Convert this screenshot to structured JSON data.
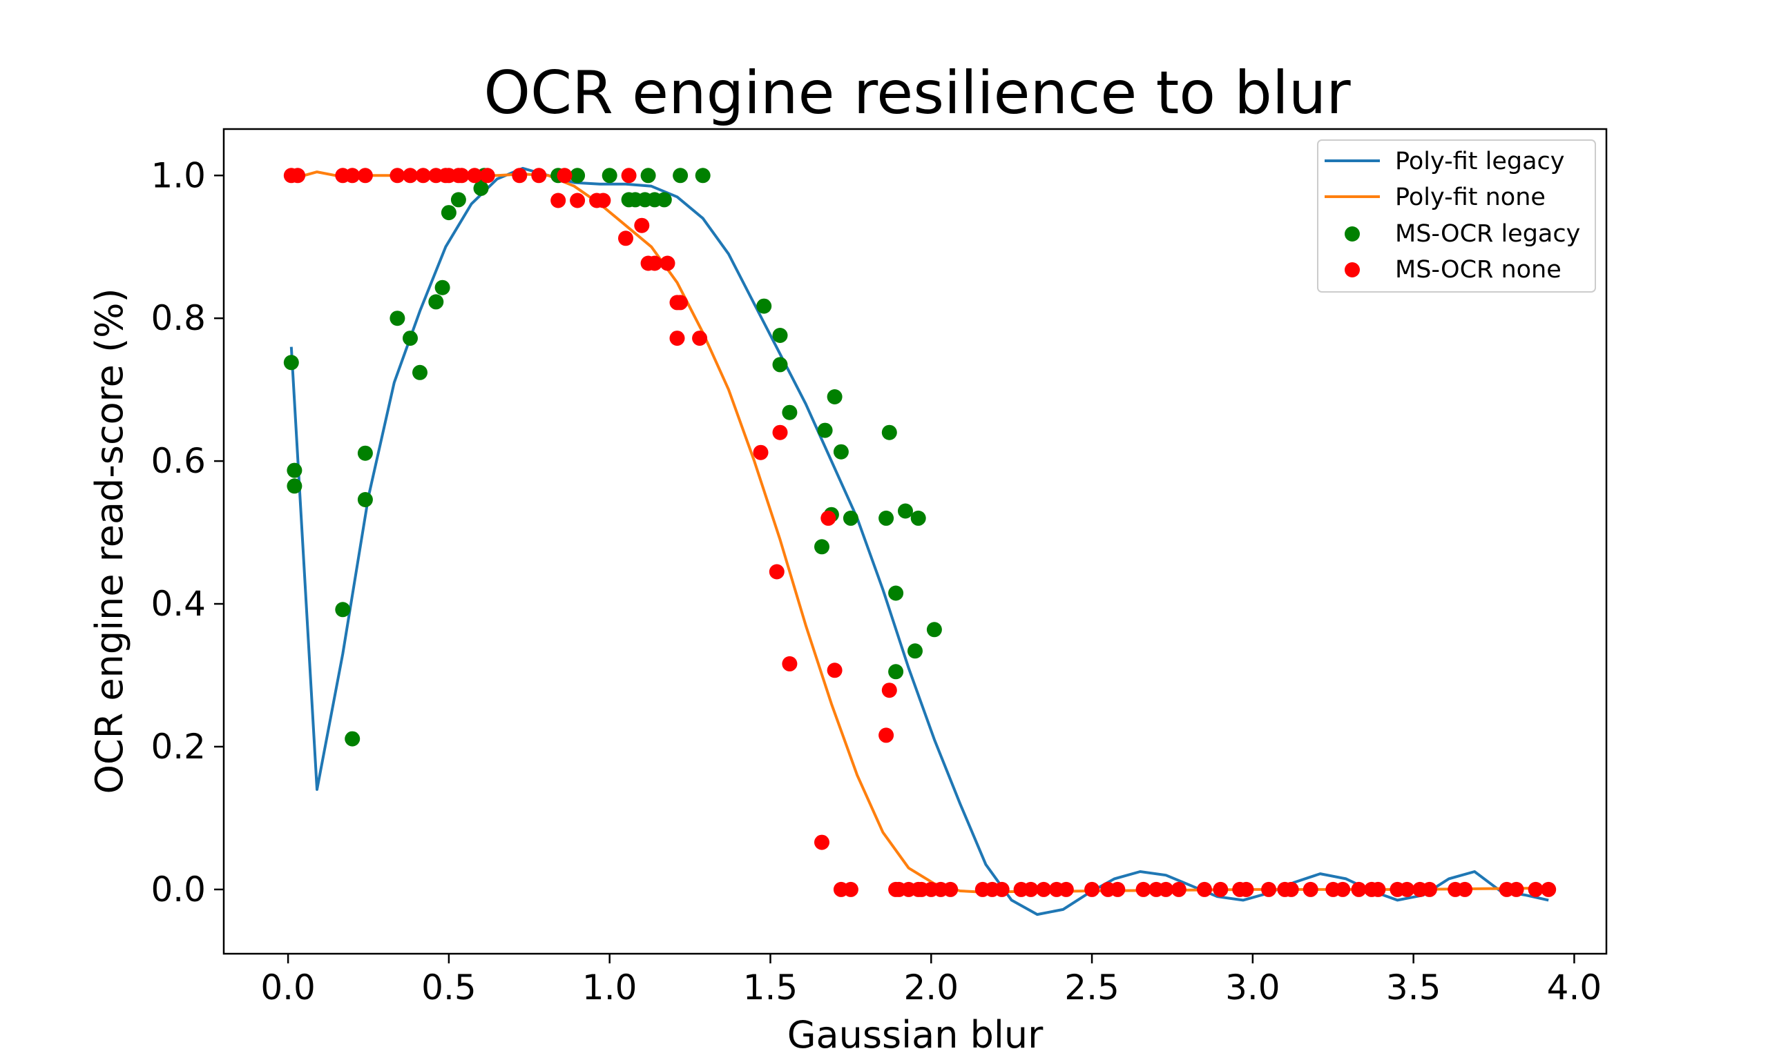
{
  "chart_data": {
    "type": "scatter",
    "title": "OCR engine resilience to blur",
    "xlabel": "Gaussian blur",
    "ylabel": "OCR engine read-score (%)",
    "xlim": [
      -0.2,
      4.1
    ],
    "ylim": [
      -0.09,
      1.065
    ],
    "xticks": [
      0.0,
      0.5,
      1.0,
      1.5,
      2.0,
      2.5,
      3.0,
      3.5,
      4.0
    ],
    "xtick_labels": [
      "0.0",
      "0.5",
      "1.0",
      "1.5",
      "2.0",
      "2.5",
      "3.0",
      "3.5",
      "4.0"
    ],
    "yticks": [
      0.0,
      0.2,
      0.4,
      0.6,
      0.8,
      1.0
    ],
    "ytick_labels": [
      "0.0",
      "0.2",
      "0.4",
      "0.6",
      "0.8",
      "1.0"
    ],
    "grid": false,
    "legend_position": "top-right",
    "colors": {
      "poly_legacy": "#1f77b4",
      "poly_none": "#ff7f0e",
      "ms_legacy": "#008000",
      "ms_none": "#ff0000"
    },
    "series": [
      {
        "name": "Poly-fit legacy",
        "kind": "line",
        "color": "#1f77b4",
        "x": [
          0.01,
          0.09,
          0.17,
          0.25,
          0.33,
          0.41,
          0.49,
          0.57,
          0.65,
          0.73,
          0.81,
          0.89,
          0.97,
          1.05,
          1.13,
          1.21,
          1.29,
          1.37,
          1.45,
          1.53,
          1.61,
          1.69,
          1.77,
          1.85,
          1.93,
          2.01,
          2.09,
          2.17,
          2.25,
          2.33,
          2.41,
          2.49,
          2.57,
          2.65,
          2.73,
          2.81,
          2.89,
          2.97,
          3.05,
          3.13,
          3.21,
          3.29,
          3.37,
          3.45,
          3.53,
          3.61,
          3.69,
          3.77,
          3.85,
          3.92
        ],
        "y": [
          0.76,
          0.14,
          0.33,
          0.55,
          0.71,
          0.81,
          0.9,
          0.96,
          0.995,
          1.01,
          1.0,
          0.99,
          0.988,
          0.988,
          0.985,
          0.97,
          0.94,
          0.89,
          0.82,
          0.75,
          0.68,
          0.6,
          0.52,
          0.42,
          0.31,
          0.21,
          0.12,
          0.035,
          -0.015,
          -0.035,
          -0.028,
          -0.005,
          0.015,
          0.025,
          0.02,
          0.005,
          -0.01,
          -0.015,
          -0.005,
          0.01,
          0.022,
          0.015,
          -0.002,
          -0.015,
          -0.008,
          0.015,
          0.025,
          -0.002,
          -0.008,
          -0.015
        ]
      },
      {
        "name": "Poly-fit none",
        "kind": "line",
        "color": "#ff7f0e",
        "x": [
          0.01,
          0.09,
          0.17,
          0.25,
          0.33,
          0.41,
          0.49,
          0.57,
          0.65,
          0.73,
          0.81,
          0.89,
          0.97,
          1.05,
          1.13,
          1.21,
          1.29,
          1.37,
          1.45,
          1.53,
          1.61,
          1.69,
          1.77,
          1.85,
          1.93,
          2.01,
          2.09,
          2.17,
          2.25,
          2.33,
          2.5,
          3.0,
          3.5,
          3.92
        ],
        "y": [
          0.995,
          1.005,
          0.998,
          1.0,
          1.0,
          1.0,
          1.0,
          1.0,
          1.0,
          1.002,
          1.0,
          0.985,
          0.96,
          0.93,
          0.9,
          0.85,
          0.78,
          0.7,
          0.6,
          0.49,
          0.37,
          0.26,
          0.16,
          0.08,
          0.03,
          0.008,
          -0.002,
          -0.004,
          -0.003,
          -0.003,
          -0.002,
          0.0,
          0.0,
          0.002
        ]
      },
      {
        "name": "MS-OCR legacy",
        "kind": "scatter",
        "color": "#008000",
        "x": [
          0.01,
          0.02,
          0.02,
          0.17,
          0.2,
          0.24,
          0.24,
          0.34,
          0.38,
          0.41,
          0.46,
          0.48,
          0.5,
          0.53,
          0.6,
          0.61,
          0.84,
          0.9,
          1.0,
          1.06,
          1.08,
          1.11,
          1.12,
          1.14,
          1.17,
          1.22,
          1.29,
          1.48,
          1.53,
          1.53,
          1.56,
          1.66,
          1.67,
          1.69,
          1.7,
          1.72,
          1.75,
          1.86,
          1.87,
          1.89,
          1.89,
          1.92,
          1.95,
          1.96,
          2.01
        ],
        "y": [
          0.738,
          0.587,
          0.565,
          0.392,
          0.211,
          0.611,
          0.546,
          0.8,
          0.772,
          0.724,
          0.823,
          0.843,
          0.948,
          0.966,
          0.982,
          1.0,
          1.0,
          1.0,
          1.0,
          0.966,
          0.966,
          0.966,
          1.0,
          0.966,
          0.966,
          1.0,
          1.0,
          0.817,
          0.776,
          0.735,
          0.668,
          0.48,
          0.643,
          0.525,
          0.69,
          0.613,
          0.52,
          0.52,
          0.64,
          0.415,
          0.305,
          0.53,
          0.334,
          0.52,
          0.364
        ]
      },
      {
        "name": "MS-OCR none",
        "kind": "scatter",
        "color": "#ff0000",
        "x": [
          0.01,
          0.03,
          0.17,
          0.2,
          0.24,
          0.34,
          0.38,
          0.42,
          0.46,
          0.49,
          0.5,
          0.53,
          0.54,
          0.58,
          0.62,
          0.72,
          0.78,
          0.84,
          0.86,
          0.9,
          0.96,
          0.98,
          1.05,
          1.06,
          1.1,
          1.12,
          1.14,
          1.18,
          1.21,
          1.21,
          1.22,
          1.28,
          1.47,
          1.52,
          1.53,
          1.56,
          1.66,
          1.68,
          1.7,
          1.72,
          1.75,
          1.86,
          1.87,
          1.89,
          1.9,
          1.93,
          1.96,
          1.97,
          2.0,
          2.03,
          2.06,
          2.16,
          2.19,
          2.22,
          2.28,
          2.31,
          2.35,
          2.39,
          2.42,
          2.5,
          2.55,
          2.58,
          2.66,
          2.7,
          2.73,
          2.77,
          2.85,
          2.9,
          2.96,
          2.98,
          3.05,
          3.1,
          3.12,
          3.18,
          3.25,
          3.28,
          3.33,
          3.37,
          3.39,
          3.45,
          3.48,
          3.52,
          3.55,
          3.63,
          3.66,
          3.79,
          3.82,
          3.88,
          3.92
        ],
        "y": [
          1.0,
          1.0,
          1.0,
          1.0,
          1.0,
          1.0,
          1.0,
          1.0,
          1.0,
          1.0,
          1.0,
          1.0,
          1.0,
          1.0,
          1.0,
          1.0,
          1.0,
          0.965,
          1.0,
          0.965,
          0.965,
          0.965,
          0.912,
          1.0,
          0.93,
          0.877,
          0.877,
          0.877,
          0.772,
          0.822,
          0.822,
          0.772,
          0.612,
          0.445,
          0.64,
          0.316,
          0.066,
          0.52,
          0.307,
          0.0,
          0.0,
          0.216,
          0.279,
          0.0,
          0.0,
          0.0,
          0.0,
          0.0,
          0.0,
          0.0,
          0.0,
          0.0,
          0.0,
          0.0,
          0.0,
          0.0,
          0.0,
          0.0,
          0.0,
          0.0,
          0.0,
          0.0,
          0.0,
          0.0,
          0.0,
          0.0,
          0.0,
          0.0,
          0.0,
          0.0,
          0.0,
          0.0,
          0.0,
          0.0,
          0.0,
          0.0,
          0.0,
          0.0,
          0.0,
          0.0,
          0.0,
          0.0,
          0.0,
          0.0,
          0.0,
          0.0,
          0.0,
          0.0,
          0.0
        ]
      }
    ]
  }
}
